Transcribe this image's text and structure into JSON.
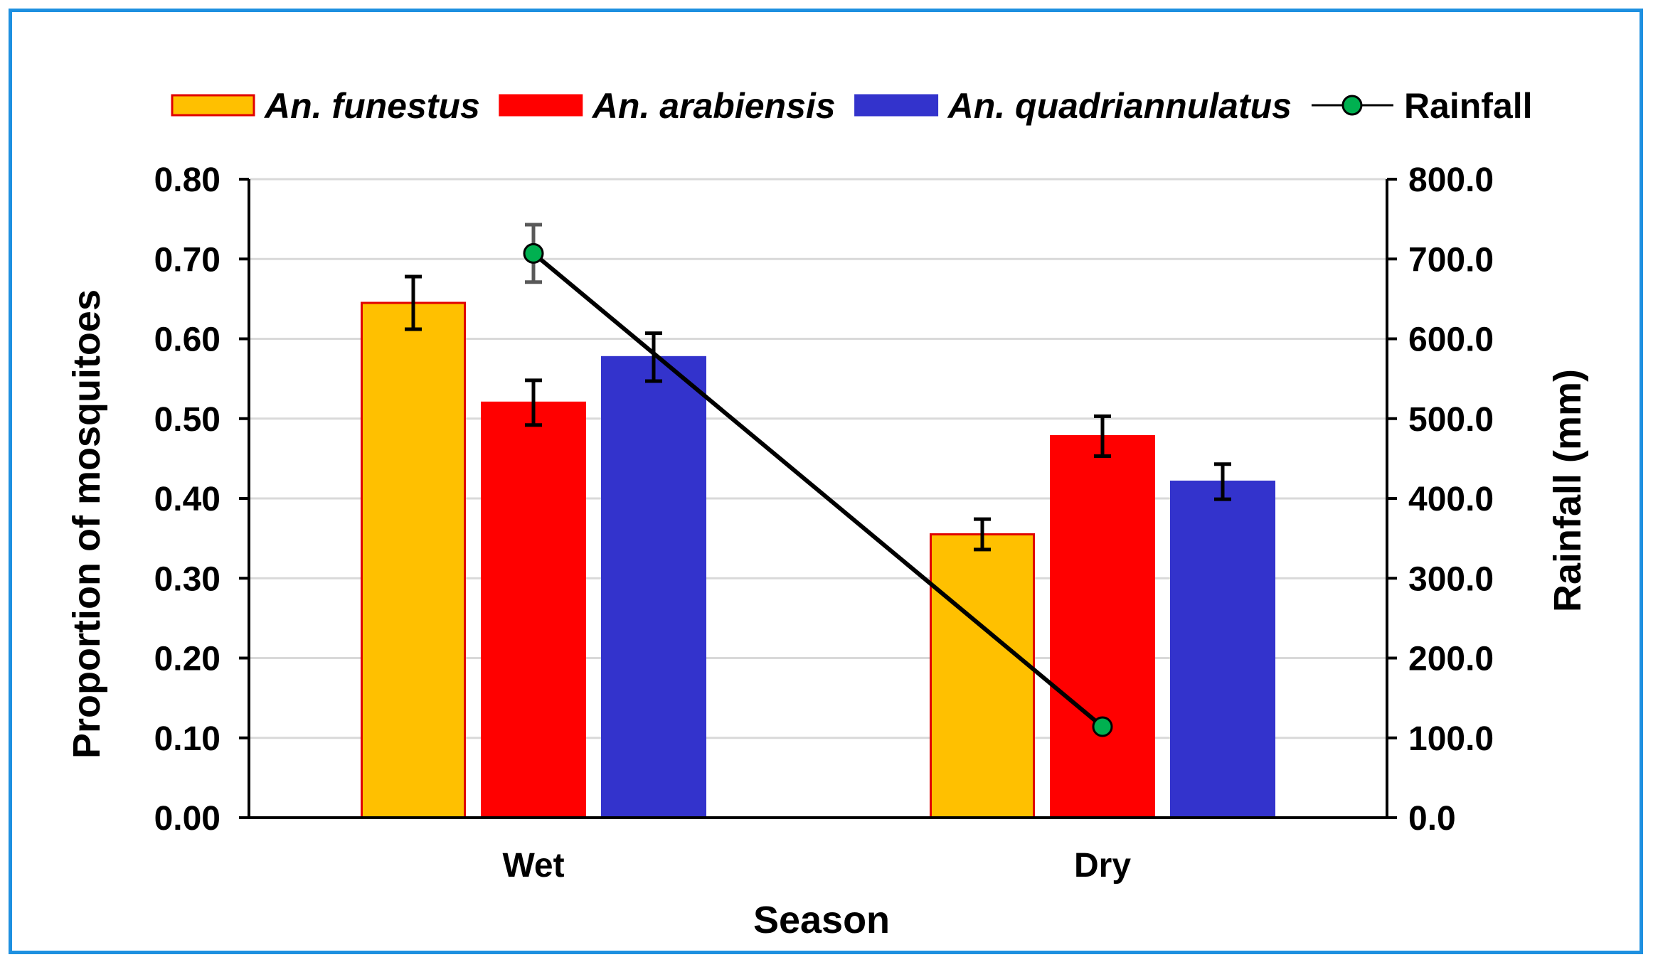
{
  "chart_data": {
    "type": "bar",
    "title": "",
    "xlabel": "Season",
    "ylabel": "Proportion of mosquitoes",
    "y2label": "Rainfall (mm)",
    "categories": [
      "Wet",
      "Dry"
    ],
    "ylim": [
      0,
      0.8
    ],
    "y2lim": [
      0,
      800
    ],
    "yticks": [
      "0.00",
      "0.10",
      "0.20",
      "0.30",
      "0.40",
      "0.50",
      "0.60",
      "0.70",
      "0.80"
    ],
    "y2ticks": [
      "0.0",
      "100.0",
      "200.0",
      "300.0",
      "400.0",
      "500.0",
      "600.0",
      "700.0",
      "800.0"
    ],
    "grid": true,
    "legend_position": "top",
    "series": [
      {
        "name": "An. funestus",
        "type": "bar",
        "color": "#FFC000",
        "edge": "#E00000",
        "values": [
          0.645,
          0.355
        ],
        "errors": [
          0.033,
          0.019
        ]
      },
      {
        "name": "An. arabiensis",
        "type": "bar",
        "color": "#FF0000",
        "edge": "#FF0000",
        "values": [
          0.52,
          0.478
        ],
        "errors": [
          0.028,
          0.025
        ]
      },
      {
        "name": "An. quadriannulatus",
        "type": "bar",
        "color": "#3333CC",
        "edge": "#3333CC",
        "values": [
          0.577,
          0.421
        ],
        "errors": [
          0.03,
          0.022
        ]
      },
      {
        "name": "Rainfall",
        "type": "line",
        "axis": "right",
        "color": "#000000",
        "marker": "#00B050",
        "values": [
          707,
          114
        ],
        "errors": [
          36,
          0
        ]
      }
    ]
  }
}
